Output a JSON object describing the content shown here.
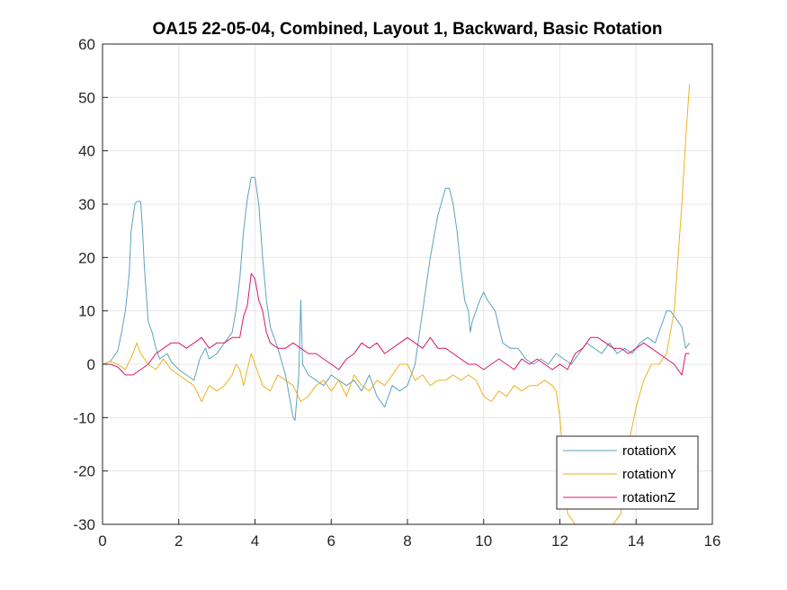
{
  "chart_data": {
    "type": "line",
    "title": "OA15 22-05-04, Combined, Layout 1, Backward, Basic Rotation",
    "xlabel": "",
    "ylabel": "",
    "xlim": [
      0,
      16
    ],
    "ylim": [
      -30,
      60
    ],
    "xticks": [
      "0",
      "2",
      "4",
      "6",
      "8",
      "10",
      "12",
      "14",
      "16"
    ],
    "yticks": [
      "60",
      "50",
      "40",
      "30",
      "20",
      "10",
      "0",
      "-10",
      "-20",
      "-30"
    ],
    "grid": true,
    "legend_position": "bottom-right",
    "series": [
      {
        "name": "rotationX",
        "color": "#5ba3bf",
        "x": [
          0,
          0.2,
          0.4,
          0.5,
          0.6,
          0.7,
          0.75,
          0.85,
          0.9,
          1.0,
          1.05,
          1.1,
          1.2,
          1.3,
          1.4,
          1.5,
          1.6,
          1.7,
          1.8,
          2.0,
          2.2,
          2.4,
          2.55,
          2.7,
          2.8,
          3.0,
          3.2,
          3.4,
          3.5,
          3.6,
          3.7,
          3.8,
          3.9,
          4.0,
          4.1,
          4.2,
          4.3,
          4.4,
          4.5,
          4.6,
          4.8,
          5.0,
          5.05,
          5.15,
          5.2,
          5.25,
          5.4,
          5.6,
          5.8,
          6.0,
          6.2,
          6.4,
          6.6,
          6.8,
          7.0,
          7.2,
          7.4,
          7.6,
          7.8,
          8.0,
          8.2,
          8.4,
          8.6,
          8.8,
          9.0,
          9.1,
          9.2,
          9.3,
          9.4,
          9.5,
          9.6,
          9.65,
          9.7,
          9.8,
          9.9,
          10.0,
          10.1,
          10.3,
          10.5,
          10.7,
          10.9,
          11.1,
          11.3,
          11.5,
          11.7,
          11.9,
          12.1,
          12.3,
          12.5,
          12.7,
          12.9,
          13.1,
          13.3,
          13.5,
          13.7,
          13.9,
          14.1,
          14.3,
          14.5,
          14.7,
          14.8,
          14.9,
          15.0,
          15.1,
          15.2,
          15.3,
          15.4
        ],
        "values": [
          0,
          0.5,
          2.5,
          6,
          10,
          17,
          25,
          30,
          30.5,
          30.5,
          25,
          18,
          8,
          6,
          3,
          1,
          1.5,
          2,
          0.5,
          -1,
          -2,
          -3,
          1,
          3,
          1,
          2,
          4,
          6,
          10,
          16,
          25,
          31,
          35,
          35,
          30,
          20,
          12,
          7,
          5,
          3,
          -2,
          -10,
          -10.5,
          -2,
          12,
          0,
          -2,
          -3,
          -4,
          -2,
          -3,
          -4,
          -3,
          -5,
          -2,
          -6,
          -8,
          -4,
          -5,
          -4,
          0,
          10,
          20,
          28,
          33,
          33,
          30,
          25,
          18,
          12,
          10,
          6,
          8,
          10,
          12,
          13.5,
          12,
          10,
          4,
          3,
          3,
          1,
          0,
          1,
          0,
          2,
          1,
          0,
          2,
          4,
          3,
          2,
          4,
          2,
          3,
          2,
          4,
          5,
          4,
          8,
          10,
          10,
          9,
          8,
          7,
          3,
          4
        ]
      },
      {
        "name": "rotationY",
        "color": "#edb120",
        "x": [
          0,
          0.2,
          0.4,
          0.6,
          0.8,
          0.9,
          1.0,
          1.2,
          1.4,
          1.6,
          1.8,
          2.0,
          2.2,
          2.4,
          2.6,
          2.8,
          3.0,
          3.2,
          3.4,
          3.5,
          3.6,
          3.7,
          3.8,
          3.9,
          4.0,
          4.2,
          4.4,
          4.6,
          4.8,
          5.0,
          5.2,
          5.4,
          5.6,
          5.8,
          6.0,
          6.2,
          6.4,
          6.6,
          6.8,
          7.0,
          7.2,
          7.4,
          7.6,
          7.8,
          8.0,
          8.2,
          8.4,
          8.6,
          8.8,
          9.0,
          9.2,
          9.4,
          9.6,
          9.8,
          10.0,
          10.2,
          10.4,
          10.6,
          10.8,
          11.0,
          11.2,
          11.4,
          11.6,
          11.8,
          11.9,
          12.0,
          12.1,
          12.2,
          12.4,
          12.6,
          12.8,
          13.0,
          13.2,
          13.4,
          13.6,
          13.8,
          14.0,
          14.2,
          14.4,
          14.6,
          14.8,
          15.0,
          15.1,
          15.2,
          15.3,
          15.4
        ],
        "values": [
          0,
          0.5,
          0,
          -1,
          2,
          4,
          2,
          0,
          -1,
          1,
          -1,
          -2,
          -3,
          -4,
          -7,
          -4,
          -5,
          -4,
          -2,
          0,
          -1,
          -4,
          -1,
          2,
          0,
          -4,
          -5,
          -2,
          -3,
          -4,
          -7,
          -6,
          -4,
          -3,
          -5,
          -3,
          -6,
          -2,
          -4,
          -5,
          -3,
          -4,
          -2,
          0,
          0,
          -3,
          -2,
          -4,
          -3,
          -3,
          -2,
          -3,
          -2,
          -3,
          -6,
          -7,
          -5,
          -6,
          -4,
          -5,
          -4,
          -4,
          -3,
          -4,
          -5,
          -10,
          -18,
          -28,
          -30,
          -30,
          -30,
          -30,
          -30,
          -30,
          -28,
          -15,
          -8,
          -3,
          0,
          0,
          2,
          10,
          20,
          30,
          42,
          52.5
        ]
      },
      {
        "name": "rotationZ",
        "color": "#d7176c",
        "x": [
          0,
          0.2,
          0.4,
          0.6,
          0.8,
          1.0,
          1.2,
          1.4,
          1.6,
          1.8,
          2.0,
          2.2,
          2.4,
          2.6,
          2.8,
          3.0,
          3.2,
          3.4,
          3.6,
          3.7,
          3.8,
          3.9,
          4.0,
          4.1,
          4.2,
          4.3,
          4.4,
          4.6,
          4.8,
          5.0,
          5.2,
          5.4,
          5.6,
          5.8,
          6.0,
          6.2,
          6.4,
          6.6,
          6.8,
          7.0,
          7.2,
          7.4,
          7.6,
          7.8,
          8.0,
          8.2,
          8.4,
          8.6,
          8.8,
          9.0,
          9.2,
          9.4,
          9.6,
          9.8,
          10.0,
          10.2,
          10.4,
          10.6,
          10.8,
          11.0,
          11.2,
          11.4,
          11.6,
          11.8,
          12.0,
          12.2,
          12.4,
          12.6,
          12.8,
          13.0,
          13.2,
          13.4,
          13.6,
          13.8,
          14.0,
          14.2,
          14.4,
          14.6,
          14.8,
          15.0,
          15.2,
          15.3,
          15.4
        ],
        "values": [
          0,
          0,
          -0.5,
          -2,
          -2,
          -1,
          0,
          2,
          3,
          4,
          4,
          3,
          4,
          5,
          3,
          4,
          4,
          5,
          5,
          9,
          11,
          17,
          16,
          12,
          10,
          6,
          4,
          3,
          3,
          4,
          3,
          2,
          2,
          1,
          0,
          -1,
          1,
          2,
          4,
          3,
          4,
          2,
          3,
          4,
          5,
          4,
          3,
          5,
          3,
          3,
          2,
          1,
          0,
          0,
          -1,
          0,
          1,
          0,
          -1,
          1,
          0,
          1,
          0,
          -1,
          0,
          -1,
          2,
          3,
          5,
          5,
          4,
          3,
          3,
          2,
          3,
          4,
          3,
          2,
          1,
          0,
          -2,
          2,
          2
        ]
      }
    ]
  }
}
